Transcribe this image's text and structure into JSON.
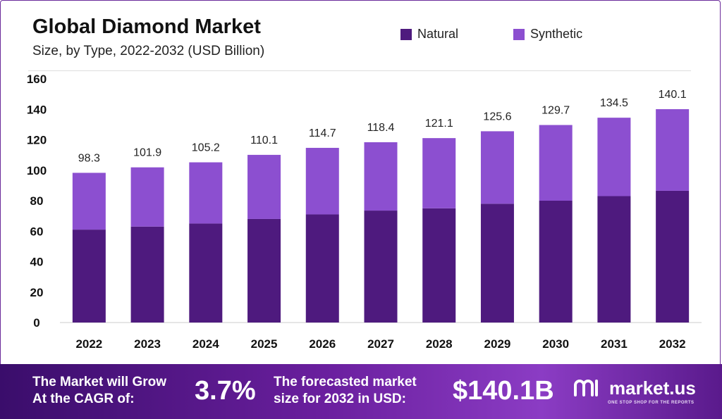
{
  "title": "Global Diamond Market",
  "subtitle": "Size, by Type, 2022-2032 (USD Billion)",
  "legend": [
    {
      "label": "Natural",
      "color": "#4e1a7e"
    },
    {
      "label": "Synthetic",
      "color": "#8c4fd0"
    }
  ],
  "chart_data": {
    "type": "bar",
    "stacked": true,
    "categories": [
      "2022",
      "2023",
      "2024",
      "2025",
      "2026",
      "2027",
      "2028",
      "2029",
      "2030",
      "2031",
      "2032"
    ],
    "series": [
      {
        "name": "Natural",
        "color": "#4e1a7e",
        "values": [
          61,
          63,
          65,
          68,
          71,
          73.5,
          75,
          78,
          80,
          83,
          86.5
        ]
      },
      {
        "name": "Synthetic",
        "color": "#8c4fd0",
        "values": [
          37.3,
          38.9,
          40.2,
          42.1,
          43.7,
          44.9,
          46.1,
          47.6,
          49.7,
          51.5,
          53.6
        ]
      }
    ],
    "totals": [
      "98.3",
      "101.9",
      "105.2",
      "110.1",
      "114.7",
      "118.4",
      "121.1",
      "125.6",
      "129.7",
      "134.5",
      "140.1"
    ],
    "ylim": [
      0,
      160
    ],
    "yticks": [
      0,
      20,
      40,
      60,
      80,
      100,
      120,
      140,
      160
    ],
    "grid": false,
    "legend_position": "top-right"
  },
  "banner": {
    "cagr_label_line1": "The Market will Grow",
    "cagr_label_line2": "At the CAGR of:",
    "cagr_value": "3.7%",
    "forecast_label_line1": "The forecasted market",
    "forecast_label_line2": "size for 2032 in USD:",
    "forecast_value": "$140.1B",
    "brand_name": "market.us",
    "brand_tagline": "ONE STOP SHOP FOR THE REPORTS"
  }
}
